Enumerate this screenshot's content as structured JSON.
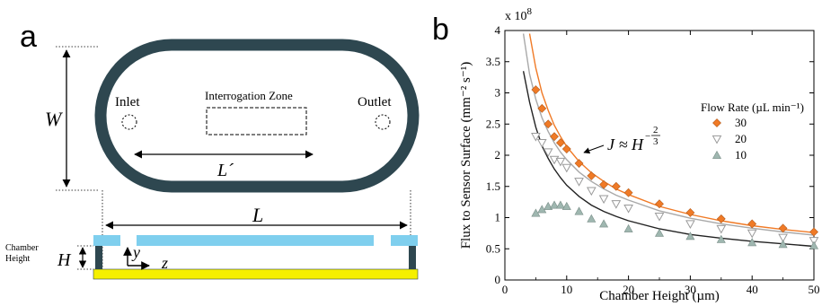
{
  "panel_a": {
    "label": "a",
    "inlet_label": "Inlet",
    "outlet_label": "Outlet",
    "zone_label": "Interrogation Zone",
    "w_label": "W",
    "lprime_label": "L´",
    "l_label": "L",
    "chamber_height_line1": "Chamber",
    "chamber_height_line2": "Height",
    "h_label": "H",
    "y_label": "y",
    "z_label": "z",
    "colors": {
      "channel": "#2e4750",
      "cover": "#7fcfee",
      "substrate": "#f5f000"
    }
  },
  "panel_b": {
    "label": "b",
    "equation": {
      "lhs": "J",
      "approx": "≈",
      "base": "H",
      "exp_sign": "−",
      "exp_num": "2",
      "exp_den": "3"
    }
  },
  "chart_data": {
    "type": "scatter",
    "title": "",
    "xlabel": "Chamber Height (µm)",
    "ylabel": "Flux to Sensor Surface  (mm⁻² s⁻¹)",
    "y_multiplier": "x 10",
    "y_multiplier_exp": "8",
    "xlim": [
      0,
      50
    ],
    "ylim": [
      0,
      4
    ],
    "xticks": [
      "0",
      "10",
      "20",
      "30",
      "40",
      "50"
    ],
    "yticks": [
      "0",
      "0.5",
      "1",
      "1.5",
      "2",
      "2.5",
      "3",
      "3.5",
      "4"
    ],
    "legend_title": "Flow Rate (µL min⁻¹)",
    "legend_placement": "right",
    "series": [
      {
        "name": "30",
        "color": "#f07a26",
        "marker": "diamond",
        "points": [
          [
            5,
            3.05
          ],
          [
            6,
            2.75
          ],
          [
            7,
            2.5
          ],
          [
            8,
            2.3
          ],
          [
            9,
            2.2
          ],
          [
            10,
            2.1
          ],
          [
            12,
            1.87
          ],
          [
            14,
            1.67
          ],
          [
            16,
            1.53
          ],
          [
            18,
            1.5
          ],
          [
            20,
            1.4
          ],
          [
            25,
            1.22
          ],
          [
            30,
            1.08
          ],
          [
            35,
            0.98
          ],
          [
            40,
            0.9
          ],
          [
            45,
            0.83
          ],
          [
            50,
            0.77
          ]
        ],
        "fit": [
          [
            4,
            3.95
          ],
          [
            5,
            3.4
          ],
          [
            6,
            3.0
          ],
          [
            7,
            2.72
          ],
          [
            8,
            2.48
          ],
          [
            9,
            2.3
          ],
          [
            10,
            2.14
          ],
          [
            12,
            1.9
          ],
          [
            14,
            1.72
          ],
          [
            16,
            1.58
          ],
          [
            18,
            1.46
          ],
          [
            20,
            1.37
          ],
          [
            25,
            1.18
          ],
          [
            30,
            1.05
          ],
          [
            35,
            0.95
          ],
          [
            40,
            0.87
          ],
          [
            45,
            0.81
          ],
          [
            50,
            0.76
          ]
        ]
      },
      {
        "name": "20",
        "color": "#9a9a9a",
        "marker": "triangle-down",
        "points": [
          [
            5,
            2.3
          ],
          [
            6,
            2.2
          ],
          [
            7,
            2.05
          ],
          [
            8,
            1.93
          ],
          [
            9,
            1.9
          ],
          [
            10,
            1.8
          ],
          [
            12,
            1.58
          ],
          [
            14,
            1.43
          ],
          [
            16,
            1.3
          ],
          [
            18,
            1.22
          ],
          [
            20,
            1.15
          ],
          [
            25,
            1.02
          ],
          [
            30,
            0.9
          ],
          [
            35,
            0.82
          ],
          [
            40,
            0.75
          ],
          [
            45,
            0.68
          ],
          [
            50,
            0.63
          ]
        ],
        "fit": [
          [
            3,
            3.95
          ],
          [
            4,
            3.3
          ],
          [
            5,
            2.9
          ],
          [
            6,
            2.6
          ],
          [
            7,
            2.38
          ],
          [
            8,
            2.2
          ],
          [
            9,
            2.05
          ],
          [
            10,
            1.93
          ],
          [
            12,
            1.73
          ],
          [
            14,
            1.58
          ],
          [
            16,
            1.46
          ],
          [
            18,
            1.36
          ],
          [
            20,
            1.28
          ],
          [
            25,
            1.11
          ],
          [
            30,
            0.99
          ],
          [
            35,
            0.9
          ],
          [
            40,
            0.83
          ],
          [
            45,
            0.77
          ],
          [
            50,
            0.72
          ]
        ]
      },
      {
        "name": "10",
        "color": "#9fb7b0",
        "marker": "triangle-up",
        "points": [
          [
            5,
            1.07
          ],
          [
            6,
            1.13
          ],
          [
            7,
            1.18
          ],
          [
            8,
            1.2
          ],
          [
            9,
            1.2
          ],
          [
            10,
            1.18
          ],
          [
            12,
            1.1
          ],
          [
            14,
            0.98
          ],
          [
            16,
            0.9
          ],
          [
            20,
            0.82
          ],
          [
            25,
            0.75
          ],
          [
            30,
            0.7
          ],
          [
            35,
            0.65
          ],
          [
            40,
            0.6
          ],
          [
            45,
            0.57
          ],
          [
            50,
            0.55
          ]
        ],
        "fit": [
          [
            3,
            3.35
          ],
          [
            4,
            2.85
          ],
          [
            5,
            2.45
          ],
          [
            6,
            2.15
          ],
          [
            7,
            1.95
          ],
          [
            8,
            1.78
          ],
          [
            9,
            1.64
          ],
          [
            10,
            1.52
          ],
          [
            12,
            1.34
          ],
          [
            14,
            1.2
          ],
          [
            16,
            1.1
          ],
          [
            18,
            1.02
          ],
          [
            20,
            0.95
          ],
          [
            25,
            0.82
          ],
          [
            30,
            0.73
          ],
          [
            35,
            0.67
          ],
          [
            40,
            0.62
          ],
          [
            45,
            0.58
          ],
          [
            50,
            0.54
          ]
        ]
      }
    ]
  }
}
